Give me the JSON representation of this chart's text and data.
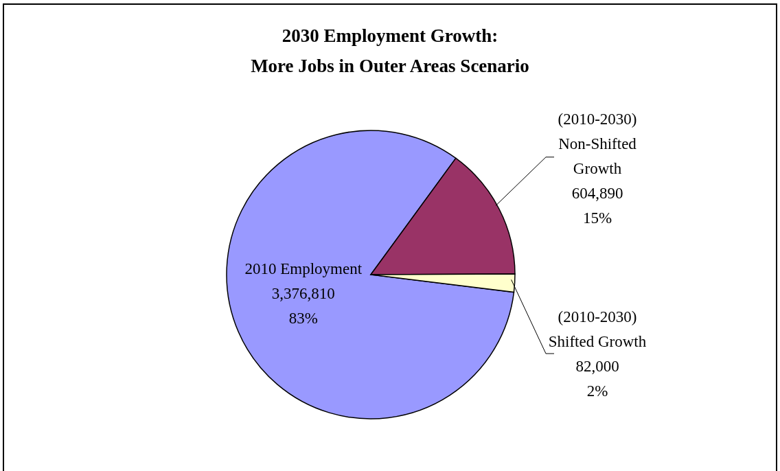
{
  "chart_data": {
    "type": "pie",
    "title": "2030 Employment Growth:\nMore Jobs in Outer Areas Scenario",
    "categories": [
      "2010 Employment",
      "(2010-2030)\nNon-Shifted\nGrowth",
      "(2010-2030)\nShifted Growth"
    ],
    "values": [
      3376810,
      604890,
      82000
    ],
    "colors": [
      "#9999ff",
      "#993366",
      "#ffffcc"
    ],
    "value_labels": [
      "3,376,810\n83%",
      "604,890\n15%",
      "82,000\n2%"
    ],
    "legend": false
  }
}
